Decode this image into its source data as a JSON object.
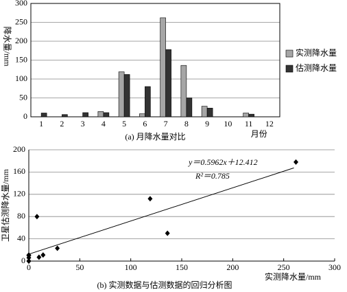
{
  "chart_data": [
    {
      "type": "bar",
      "caption": "(a) 月降水量对比",
      "y_label": "降水量/mm",
      "x_label": "月份",
      "categories": [
        "1",
        "2",
        "3",
        "4",
        "5",
        "6",
        "7",
        "8",
        "9",
        "10",
        "11",
        "12"
      ],
      "series": [
        {
          "name": "实测降水量",
          "color": "#a6a6a6",
          "values": [
            0,
            0,
            0,
            14,
            119,
            8,
            262,
            136,
            28,
            0,
            10,
            0
          ]
        },
        {
          "name": "估测降水量",
          "color": "#333333",
          "values": [
            10,
            6,
            11,
            11,
            112,
            80,
            178,
            50,
            23,
            0,
            7,
            0
          ]
        }
      ],
      "ylim": [
        0,
        300
      ],
      "yticks": [
        0,
        50,
        100,
        150,
        200,
        250,
        300
      ],
      "grid": true,
      "legend": "right"
    },
    {
      "type": "scatter",
      "caption": "(b) 实测数据与估测数据的回归分析图",
      "x_label": "实测降水量/mm",
      "y_label": "卫星估测降水量/mm",
      "x": [
        0,
        0,
        0,
        14,
        119,
        8,
        262,
        136,
        28,
        0,
        10,
        0
      ],
      "y": [
        10,
        6,
        11,
        11,
        112,
        80,
        178,
        50,
        23,
        0,
        7,
        0
      ],
      "color": "#000000",
      "xlim": [
        0,
        300
      ],
      "xticks": [
        0,
        50,
        100,
        150,
        200,
        250,
        300
      ],
      "ylim": [
        0,
        200
      ],
      "yticks": [
        0,
        40,
        80,
        120,
        160,
        200
      ],
      "grid": true,
      "trend_x": [
        0,
        260
      ],
      "trend_y": [
        12.412,
        167.4
      ],
      "annotations": [
        "y＝0.5962x＋12.412",
        "R²＝0.785"
      ]
    }
  ]
}
